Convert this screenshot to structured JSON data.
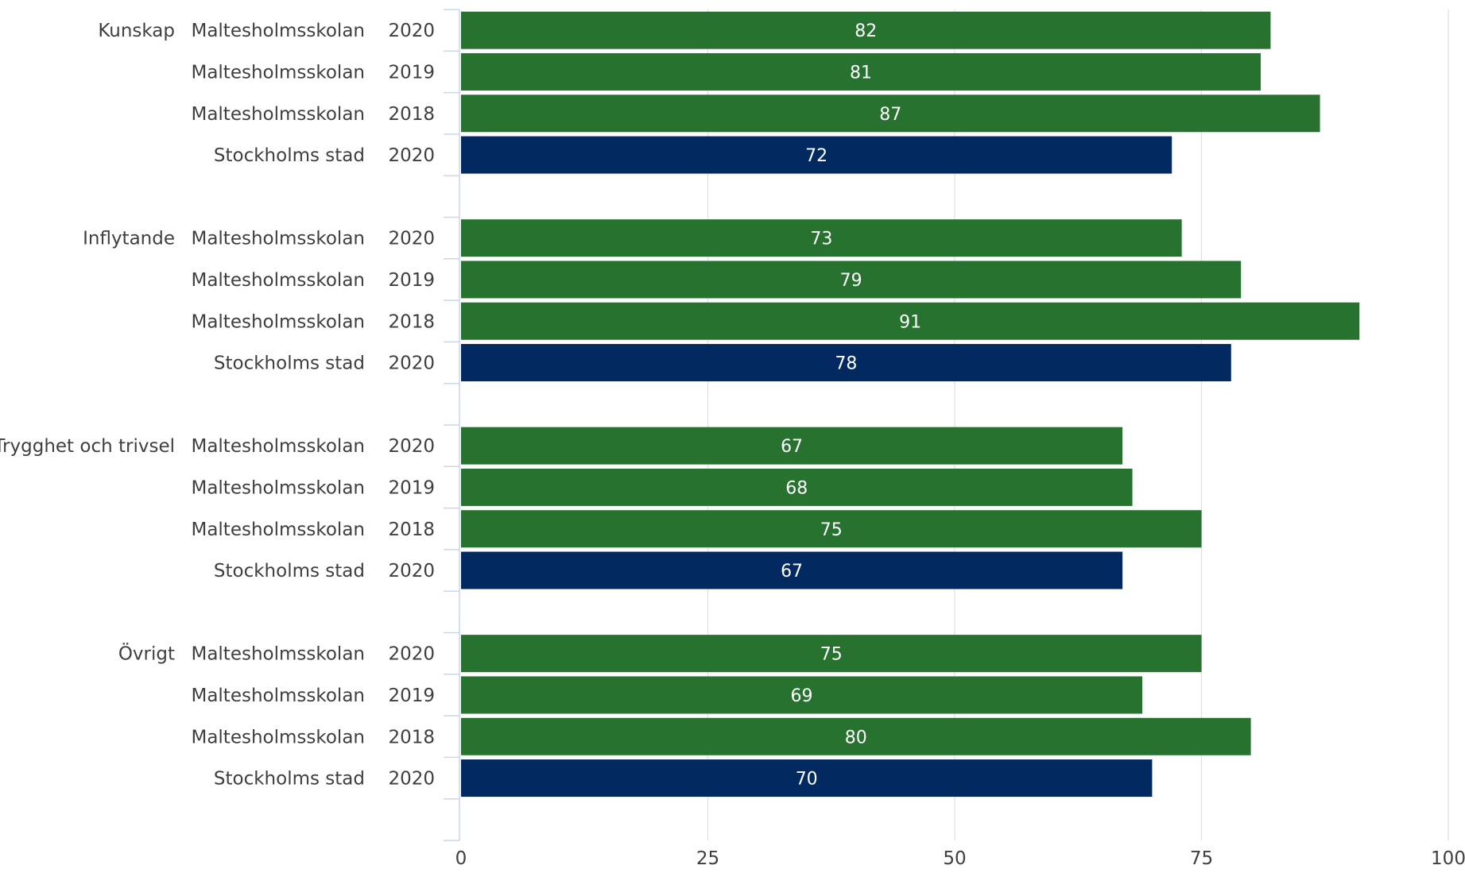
{
  "chart_data": {
    "type": "bar",
    "orientation": "horizontal",
    "xlim": [
      0,
      100
    ],
    "xticks": [
      "0",
      "25",
      "50",
      "75",
      "100"
    ],
    "grid": true,
    "colors": {
      "school": "#27722f",
      "city": "#022a61"
    },
    "groups": [
      {
        "label": "Kunskap",
        "rows": [
          {
            "name": "Maltesholmsskolan",
            "year": "2020",
            "value": 82,
            "series": "school"
          },
          {
            "name": "Maltesholmsskolan",
            "year": "2019",
            "value": 81,
            "series": "school"
          },
          {
            "name": "Maltesholmsskolan",
            "year": "2018",
            "value": 87,
            "series": "school"
          },
          {
            "name": "Stockholms stad",
            "year": "2020",
            "value": 72,
            "series": "city"
          }
        ]
      },
      {
        "label": "Inflytande",
        "rows": [
          {
            "name": "Maltesholmsskolan",
            "year": "2020",
            "value": 73,
            "series": "school"
          },
          {
            "name": "Maltesholmsskolan",
            "year": "2019",
            "value": 79,
            "series": "school"
          },
          {
            "name": "Maltesholmsskolan",
            "year": "2018",
            "value": 91,
            "series": "school"
          },
          {
            "name": "Stockholms stad",
            "year": "2020",
            "value": 78,
            "series": "city"
          }
        ]
      },
      {
        "label": "Trygghet och trivsel",
        "rows": [
          {
            "name": "Maltesholmsskolan",
            "year": "2020",
            "value": 67,
            "series": "school"
          },
          {
            "name": "Maltesholmsskolan",
            "year": "2019",
            "value": 68,
            "series": "school"
          },
          {
            "name": "Maltesholmsskolan",
            "year": "2018",
            "value": 75,
            "series": "school"
          },
          {
            "name": "Stockholms stad",
            "year": "2020",
            "value": 67,
            "series": "city"
          }
        ]
      },
      {
        "label": "Övrigt",
        "rows": [
          {
            "name": "Maltesholmsskolan",
            "year": "2020",
            "value": 75,
            "series": "school"
          },
          {
            "name": "Maltesholmsskolan",
            "year": "2019",
            "value": 69,
            "series": "school"
          },
          {
            "name": "Maltesholmsskolan",
            "year": "2018",
            "value": 80,
            "series": "school"
          },
          {
            "name": "Stockholms stad",
            "year": "2020",
            "value": 70,
            "series": "city"
          }
        ]
      }
    ]
  }
}
